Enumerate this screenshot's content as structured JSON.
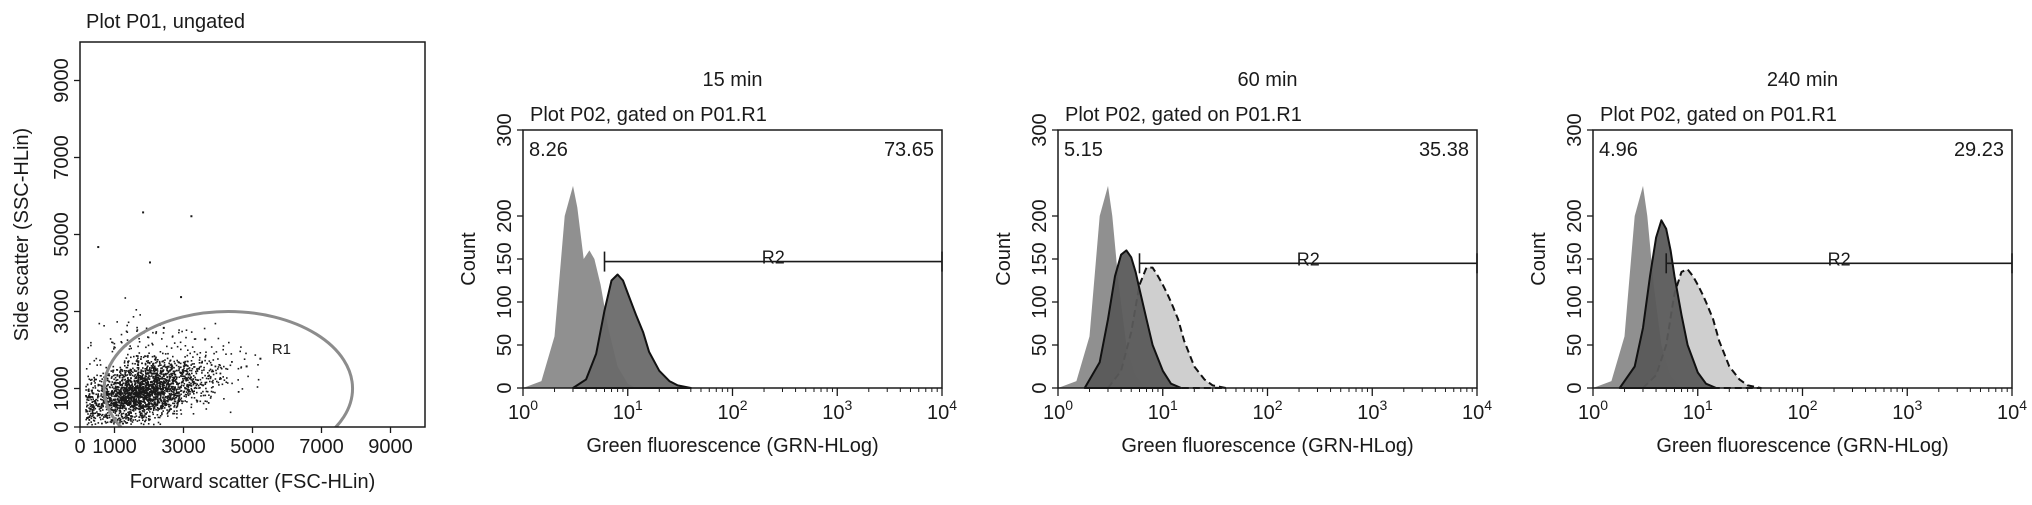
{
  "chart_data": [
    {
      "type": "scatter",
      "title": "Plot P01, ungated",
      "xlabel": "Forward scatter (FSC-HLin)",
      "ylabel": "Side scatter (SSC-HLin)",
      "xlim": [
        0,
        10000
      ],
      "ylim": [
        0,
        10000
      ],
      "x_ticks": [
        0,
        1000,
        3000,
        5000,
        7000,
        9000
      ],
      "y_ticks": [
        0,
        1000,
        3000,
        5000,
        7000,
        9000
      ],
      "gate": {
        "label": "R1",
        "center_x": 4300,
        "center_y": 1000,
        "radius_x": 3600,
        "radius_y": 2000,
        "color": "#8c8c8c"
      },
      "dot_color": "#1a1a1a",
      "sample_points": [
        [
          1800,
          5600
        ],
        [
          3200,
          5500
        ],
        [
          500,
          4700
        ],
        [
          2000,
          4300
        ],
        [
          2900,
          3400
        ],
        [
          5200,
          1800
        ],
        [
          4800,
          1600
        ],
        [
          400,
          700
        ],
        [
          2400,
          2600
        ],
        [
          3600,
          2300
        ]
      ]
    },
    {
      "type": "area",
      "title": "15 min",
      "subtitle": "Plot P02, gated on P01.R1",
      "xlabel": "Green fluorescence (GRN-HLog)",
      "ylabel": "Count",
      "x_scale": "log",
      "xlim": [
        1,
        10000
      ],
      "ylim": [
        0,
        300
      ],
      "y_ticks": [
        0,
        50,
        100,
        150,
        200,
        300
      ],
      "x_ticks": [
        "10",
        "10",
        "10",
        "10",
        "10"
      ],
      "x_tick_exponents": [
        "0",
        "1",
        "2",
        "3",
        "4"
      ],
      "x_tick_values": [
        1,
        10,
        100,
        1000,
        10000
      ],
      "stat_left": "8.26",
      "stat_right": "73.65",
      "gate": {
        "label": "R2",
        "start": 6,
        "end": 10000,
        "level": 147
      },
      "series": [
        {
          "x": [
            1,
            1.5,
            2,
            2.5,
            3,
            3.3,
            3.8,
            4.3,
            4.8,
            5.5,
            6.5,
            8,
            10,
            12
          ],
          "y": [
            0,
            8,
            60,
            200,
            235,
            210,
            150,
            160,
            150,
            120,
            70,
            25,
            5,
            0
          ],
          "fill": "#8a8a8a",
          "line": "none",
          "dash": false
        },
        {
          "x": [
            3,
            4,
            5,
            6,
            7,
            8,
            9,
            10,
            12,
            14,
            16,
            20,
            25,
            30,
            40
          ],
          "y": [
            0,
            10,
            40,
            90,
            125,
            132,
            125,
            110,
            85,
            65,
            42,
            20,
            8,
            3,
            0
          ],
          "fill": "#6a6a6a",
          "line": "#111111",
          "dash": false
        }
      ]
    },
    {
      "type": "area",
      "title": "60 min",
      "subtitle": "Plot P02, gated on P01.R1",
      "xlabel": "Green fluorescence (GRN-HLog)",
      "ylabel": "Count",
      "x_scale": "log",
      "xlim": [
        1,
        10000
      ],
      "ylim": [
        0,
        300
      ],
      "y_ticks": [
        0,
        50,
        100,
        150,
        200,
        300
      ],
      "x_ticks": [
        "10",
        "10",
        "10",
        "10",
        "10"
      ],
      "x_tick_exponents": [
        "0",
        "1",
        "2",
        "3",
        "4"
      ],
      "x_tick_values": [
        1,
        10,
        100,
        1000,
        10000
      ],
      "stat_left": "5.15",
      "stat_right": "35.38",
      "gate": {
        "label": "R2",
        "start": 6,
        "end": 10000,
        "level": 145
      },
      "series": [
        {
          "x": [
            1,
            1.5,
            2,
            2.5,
            3,
            3.3,
            3.8,
            4.5,
            5.5,
            7
          ],
          "y": [
            0,
            8,
            60,
            200,
            235,
            200,
            120,
            50,
            15,
            0
          ],
          "fill": "#8a8a8a",
          "line": "none",
          "dash": false
        },
        {
          "x": [
            3,
            4,
            5,
            6,
            7,
            8,
            9,
            10,
            11,
            12,
            14,
            16,
            20,
            25,
            30,
            40
          ],
          "y": [
            0,
            20,
            65,
            120,
            140,
            140,
            130,
            120,
            110,
            100,
            80,
            55,
            25,
            10,
            3,
            0
          ],
          "fill": "#cccccc",
          "line": "#111111",
          "dash": true
        },
        {
          "x": [
            1.8,
            2.5,
            3,
            3.5,
            4,
            4.5,
            5,
            5.5,
            6,
            7,
            8,
            10,
            12,
            15
          ],
          "y": [
            0,
            30,
            80,
            130,
            155,
            160,
            152,
            135,
            115,
            80,
            50,
            20,
            5,
            0
          ],
          "fill": "#5a5a5a",
          "line": "#111111",
          "dash": false
        }
      ]
    },
    {
      "type": "area",
      "title": "240 min",
      "subtitle": "Plot P02, gated on P01.R1",
      "xlabel": "Green fluorescence (GRN-HLog)",
      "ylabel": "Count",
      "x_scale": "log",
      "xlim": [
        1,
        10000
      ],
      "ylim": [
        0,
        300
      ],
      "y_ticks": [
        0,
        50,
        100,
        150,
        200,
        300
      ],
      "x_ticks": [
        "10",
        "10",
        "10",
        "10",
        "10"
      ],
      "x_tick_exponents": [
        "0",
        "1",
        "2",
        "3",
        "4"
      ],
      "x_tick_values": [
        1,
        10,
        100,
        1000,
        10000
      ],
      "stat_left": "4.96",
      "stat_right": "29.23",
      "gate": {
        "label": "R2",
        "start": 5,
        "end": 10000,
        "level": 145
      },
      "series": [
        {
          "x": [
            1,
            1.5,
            2,
            2.5,
            3,
            3.3,
            3.8,
            4.5,
            5.5,
            7
          ],
          "y": [
            0,
            8,
            60,
            200,
            235,
            200,
            120,
            50,
            15,
            0
          ],
          "fill": "#8a8a8a",
          "line": "none",
          "dash": false
        },
        {
          "x": [
            3,
            4,
            5,
            6,
            7,
            8,
            9,
            10,
            11,
            12,
            14,
            16,
            20,
            25,
            30,
            40
          ],
          "y": [
            0,
            15,
            50,
            110,
            135,
            138,
            130,
            120,
            110,
            100,
            80,
            55,
            25,
            10,
            3,
            0
          ],
          "fill": "#cccccc",
          "line": "#111111",
          "dash": true
        },
        {
          "x": [
            1.8,
            2.5,
            3,
            3.5,
            4,
            4.5,
            5,
            5.5,
            6,
            7,
            8,
            10,
            12,
            15
          ],
          "y": [
            0,
            25,
            70,
            130,
            175,
            195,
            185,
            160,
            130,
            85,
            50,
            18,
            5,
            0
          ],
          "fill": "#5a5a5a",
          "line": "#111111",
          "dash": false
        }
      ]
    }
  ]
}
